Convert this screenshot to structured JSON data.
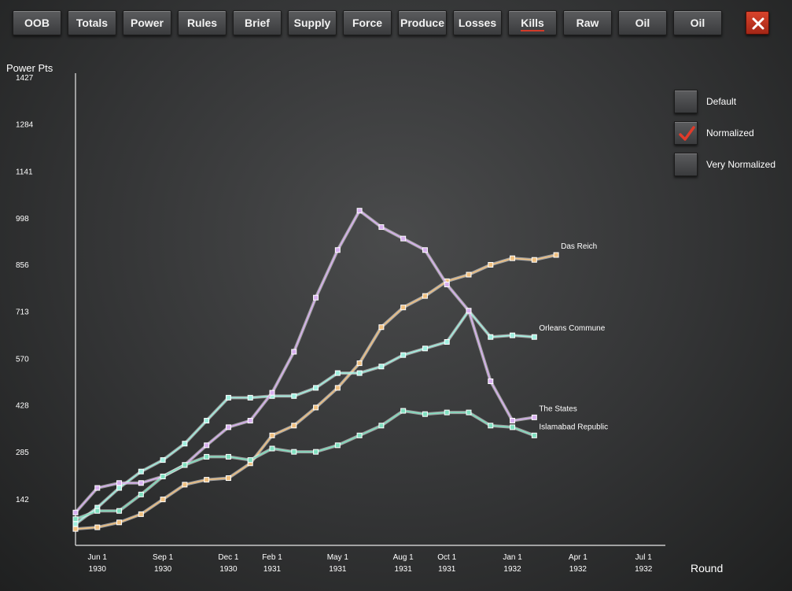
{
  "tabs": [
    {
      "label": "OOB",
      "active": false
    },
    {
      "label": "Totals",
      "active": false
    },
    {
      "label": "Power",
      "active": false
    },
    {
      "label": "Rules",
      "active": false
    },
    {
      "label": "Brief",
      "active": false
    },
    {
      "label": "Supply",
      "active": false
    },
    {
      "label": "Force",
      "active": false
    },
    {
      "label": "Produce",
      "active": false
    },
    {
      "label": "Losses",
      "active": false
    },
    {
      "label": "Kills",
      "active": true
    },
    {
      "label": "Raw",
      "active": false
    },
    {
      "label": "Oil",
      "active": false
    },
    {
      "label": "Oil",
      "active": false
    }
  ],
  "close_icon": "close-icon",
  "options": [
    {
      "label": "Default",
      "checked": false
    },
    {
      "label": "Normalized",
      "checked": true
    },
    {
      "label": "Very Normalized",
      "checked": false
    }
  ],
  "colors": {
    "accent": "#d23b2a",
    "check": "#e03a2a"
  },
  "chart_data": {
    "type": "line",
    "ylabel": "Power Pts",
    "xlabel": "Round",
    "ylim": [
      0,
      1427
    ],
    "yticks": [
      "1427",
      "1284",
      "1141",
      "998",
      "856",
      "713",
      "570",
      "428",
      "285",
      "142"
    ],
    "ytick_values": [
      1427,
      1284,
      1141,
      998,
      856,
      713,
      570,
      428,
      285,
      142
    ],
    "xticks": [
      {
        "line1": "Jun 1",
        "line2": "1930",
        "x": 0
      },
      {
        "line1": "Sep 1",
        "line2": "1930",
        "x": 3
      },
      {
        "line1": "Dec 1",
        "line2": "1930",
        "x": 6
      },
      {
        "line1": "Feb 1",
        "line2": "1931",
        "x": 8
      },
      {
        "line1": "May 1",
        "line2": "1931",
        "x": 11
      },
      {
        "line1": "Aug 1",
        "line2": "1931",
        "x": 14
      },
      {
        "line1": "Oct 1",
        "line2": "1931",
        "x": 16
      },
      {
        "line1": "Jan 1",
        "line2": "1932",
        "x": 19
      },
      {
        "line1": "Apr 1",
        "line2": "1932",
        "x": 22
      },
      {
        "line1": "Jul 1",
        "line2": "1932",
        "x": 25
      }
    ],
    "xlim": [
      -1,
      26
    ],
    "grid": false,
    "series": [
      {
        "name": "Das Reich",
        "color": "#f0c080",
        "x": [
          -1,
          0,
          1,
          2,
          3,
          4,
          5,
          6,
          7,
          8,
          9,
          10,
          11,
          12,
          13,
          14,
          15,
          16,
          17,
          18,
          19,
          20,
          21
        ],
        "values": [
          50,
          55,
          70,
          95,
          140,
          185,
          200,
          205,
          250,
          335,
          365,
          420,
          480,
          555,
          665,
          725,
          760,
          805,
          825,
          855,
          875,
          870,
          885
        ]
      },
      {
        "name": "Orleans Commune",
        "color": "#a0f0e0",
        "x": [
          -1,
          0,
          1,
          2,
          3,
          4,
          5,
          6,
          7,
          8,
          9,
          10,
          11,
          12,
          13,
          14,
          15,
          16,
          17,
          18,
          19,
          20
        ],
        "values": [
          65,
          115,
          175,
          225,
          260,
          310,
          380,
          450,
          450,
          455,
          455,
          480,
          525,
          525,
          545,
          580,
          600,
          620,
          715,
          635,
          640,
          635
        ]
      },
      {
        "name": "The States",
        "color": "#d8b0f0",
        "x": [
          -1,
          0,
          1,
          2,
          3,
          4,
          5,
          6,
          7,
          8,
          9,
          10,
          11,
          12,
          13,
          14,
          15,
          16,
          17,
          18,
          19,
          20
        ],
        "values": [
          100,
          175,
          190,
          190,
          210,
          245,
          305,
          360,
          380,
          465,
          590,
          755,
          900,
          1020,
          970,
          935,
          900,
          795,
          715,
          500,
          380,
          390
        ]
      },
      {
        "name": "Islamabad Republic",
        "color": "#80e0c0",
        "x": [
          -1,
          0,
          1,
          2,
          3,
          4,
          5,
          6,
          7,
          8,
          9,
          10,
          11,
          12,
          13,
          14,
          15,
          16,
          17,
          18,
          19,
          20
        ],
        "values": [
          80,
          105,
          105,
          155,
          210,
          245,
          270,
          270,
          260,
          295,
          285,
          285,
          305,
          335,
          365,
          410,
          400,
          405,
          405,
          365,
          360,
          335
        ]
      }
    ]
  }
}
